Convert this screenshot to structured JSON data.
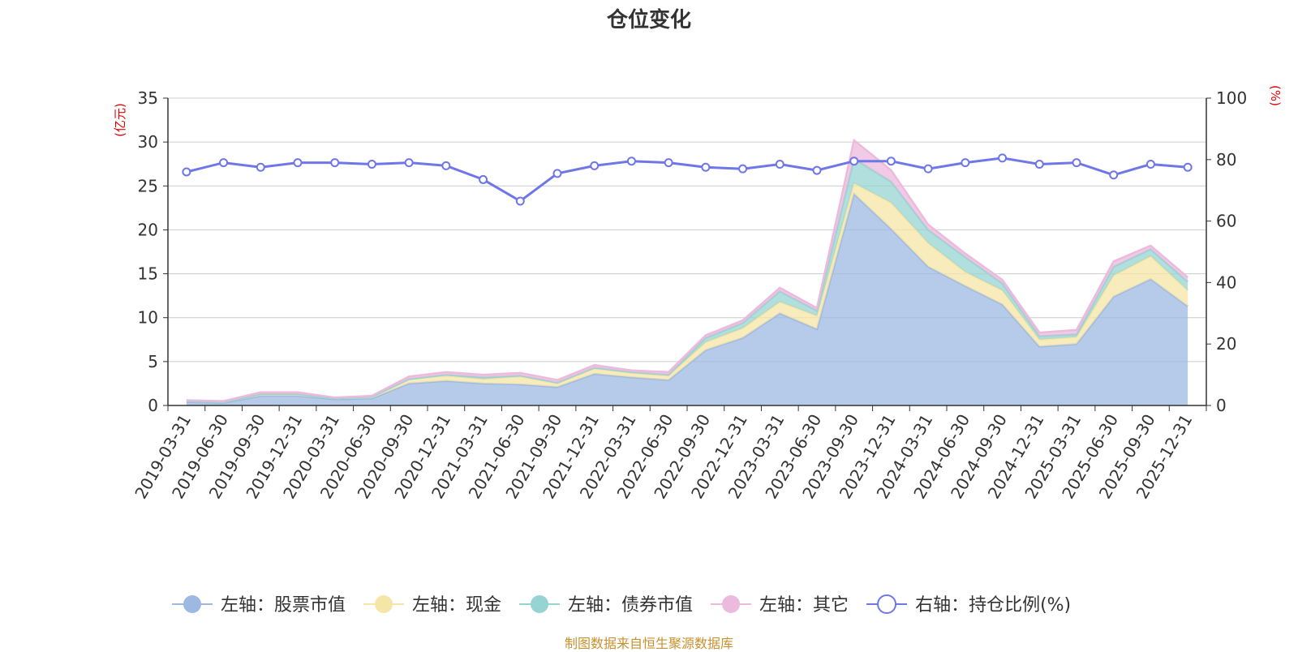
{
  "source_note": "制图数据来自恒生聚源数据库",
  "chart_data": {
    "type": "area",
    "title": "仓位变化",
    "left_axis": {
      "unit": "(亿元)",
      "ylim": [
        0,
        35
      ],
      "ticks": [
        0,
        5,
        10,
        15,
        20,
        25,
        30,
        35
      ]
    },
    "right_axis": {
      "unit": "(%)",
      "ylim": [
        0,
        100
      ],
      "ticks": [
        0,
        20,
        40,
        60,
        80,
        100
      ]
    },
    "stacked": true,
    "grid": true,
    "legend_position": "bottom",
    "categories": [
      "2019-03-31",
      "2019-06-30",
      "2019-09-30",
      "2019-12-31",
      "2020-03-31",
      "2020-06-30",
      "2020-09-30",
      "2020-12-31",
      "2021-03-31",
      "2021-06-30",
      "2021-09-30",
      "2021-12-31",
      "2022-03-31",
      "2022-06-30",
      "2022-09-30",
      "2022-12-31",
      "2023-03-31",
      "2023-06-30",
      "2023-09-30",
      "2023-12-31",
      "2024-03-31",
      "2024-06-30",
      "2024-09-30",
      "2024-12-31",
      "2025-03-31",
      "2025-06-30",
      "2025-09-30",
      "2025-12-31"
    ],
    "series": [
      {
        "name": "左轴：股票市值",
        "axis": "left",
        "color": "#9db8e1",
        "values": [
          0.4,
          0.3,
          1.1,
          1.1,
          0.7,
          0.8,
          2.5,
          2.8,
          2.5,
          2.4,
          2.1,
          3.6,
          3.2,
          2.9,
          6.3,
          7.7,
          10.5,
          8.7,
          24.1,
          20.1,
          15.8,
          13.6,
          11.5,
          6.7,
          7.0,
          12.4,
          14.4,
          11.3
        ]
      },
      {
        "name": "左轴：现金",
        "axis": "left",
        "color": "#f5e5a6",
        "values": [
          0.1,
          0.1,
          0.2,
          0.2,
          0.1,
          0.2,
          0.5,
          0.6,
          0.5,
          0.9,
          0.4,
          0.6,
          0.5,
          0.5,
          0.9,
          1.1,
          1.3,
          1.5,
          1.2,
          3.0,
          2.7,
          1.6,
          1.6,
          0.8,
          0.8,
          2.4,
          2.6,
          1.8
        ]
      },
      {
        "name": "左轴：债券市值",
        "axis": "left",
        "color": "#95d4d2",
        "values": [
          0.0,
          0.0,
          0.0,
          0.0,
          0.0,
          0.0,
          0.0,
          0.1,
          0.2,
          0.1,
          0.1,
          0.1,
          0.1,
          0.1,
          0.5,
          0.6,
          1.2,
          0.6,
          2.8,
          2.4,
          1.5,
          1.7,
          0.8,
          0.4,
          0.3,
          1.0,
          0.8,
          1.0
        ]
      },
      {
        "name": "左轴：其它",
        "axis": "left",
        "color": "#ecbadc",
        "values": [
          0.1,
          0.1,
          0.2,
          0.2,
          0.1,
          0.1,
          0.3,
          0.3,
          0.3,
          0.3,
          0.3,
          0.3,
          0.2,
          0.3,
          0.3,
          0.3,
          0.4,
          0.3,
          2.1,
          1.3,
          0.6,
          0.4,
          0.4,
          0.4,
          0.5,
          0.6,
          0.4,
          0.5
        ]
      },
      {
        "name": "右轴：持仓比例(%)",
        "axis": "right",
        "type": "line",
        "color": "#6f76e8",
        "values": [
          76,
          79,
          77.5,
          79,
          79,
          78.5,
          79,
          78,
          73.5,
          66.5,
          75.5,
          78,
          79.5,
          79,
          77.5,
          77,
          78.5,
          76.5,
          79.5,
          79.5,
          77,
          79,
          80.5,
          78.5,
          79,
          75,
          78.5,
          77.5
        ]
      }
    ]
  }
}
